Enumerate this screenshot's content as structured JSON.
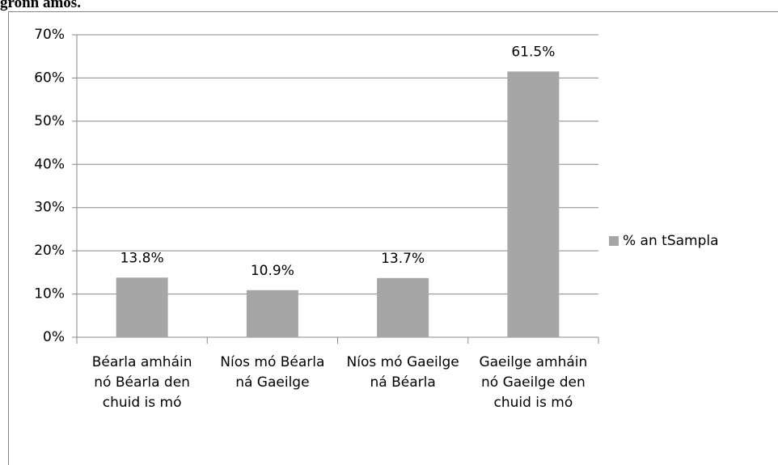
{
  "chart_data": {
    "type": "bar",
    "title": "gronn amos.",
    "categories": [
      "Béarla amháin nó Béarla den chuid is mó",
      "Níos mó Béarla ná Gaeilge",
      "Níos mó Gaeilge ná Béarla",
      "Gaeilge amháin nó Gaeilge den chuid is mó"
    ],
    "series": [
      {
        "name": "% an tSampla",
        "color": "#a6a6a6",
        "values": [
          13.8,
          10.9,
          13.7,
          61.5
        ],
        "value_labels": [
          "13.8%",
          "10.9%",
          "13.7%",
          "61.5%"
        ]
      }
    ],
    "ylim": [
      0,
      70
    ],
    "yticks": [
      {
        "value": 0,
        "label": "0%"
      },
      {
        "value": 10,
        "label": "10%"
      },
      {
        "value": 20,
        "label": "20%"
      },
      {
        "value": 30,
        "label": "30%"
      },
      {
        "value": 40,
        "label": "40%"
      },
      {
        "value": 50,
        "label": "50%"
      },
      {
        "value": 60,
        "label": "60%"
      },
      {
        "value": 70,
        "label": "70%"
      }
    ],
    "grid": true,
    "legend": "right"
  }
}
